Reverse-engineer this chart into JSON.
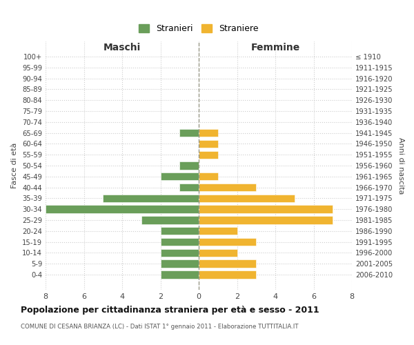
{
  "age_groups": [
    "100+",
    "95-99",
    "90-94",
    "85-89",
    "80-84",
    "75-79",
    "70-74",
    "65-69",
    "60-64",
    "55-59",
    "50-54",
    "45-49",
    "40-44",
    "35-39",
    "30-34",
    "25-29",
    "20-24",
    "15-19",
    "10-14",
    "5-9",
    "0-4"
  ],
  "birth_years": [
    "≤ 1910",
    "1911-1915",
    "1916-1920",
    "1921-1925",
    "1926-1930",
    "1931-1935",
    "1936-1940",
    "1941-1945",
    "1946-1950",
    "1951-1955",
    "1956-1960",
    "1961-1965",
    "1966-1970",
    "1971-1975",
    "1976-1980",
    "1981-1985",
    "1986-1990",
    "1991-1995",
    "1996-2000",
    "2001-2005",
    "2006-2010"
  ],
  "maschi": [
    0,
    0,
    0,
    0,
    0,
    0,
    0,
    1,
    0,
    0,
    1,
    2,
    1,
    5,
    8,
    3,
    2,
    2,
    2,
    2,
    2
  ],
  "femmine": [
    0,
    0,
    0,
    0,
    0,
    0,
    0,
    1,
    1,
    1,
    0,
    1,
    3,
    5,
    7,
    7,
    2,
    3,
    2,
    3,
    3
  ],
  "color_maschi": "#6a9e5a",
  "color_femmine": "#f0b430",
  "background_color": "#ffffff",
  "grid_color": "#cccccc",
  "title": "Popolazione per cittadinanza straniera per età e sesso - 2011",
  "subtitle": "COMUNE DI CESANA BRIANZA (LC) - Dati ISTAT 1° gennaio 2011 - Elaborazione TUTTITALIA.IT",
  "header_left": "Maschi",
  "header_right": "Femmine",
  "ylabel_left": "Fasce di età",
  "ylabel_right": "Anni di nascita",
  "xlim": 8,
  "legend_maschi": "Stranieri",
  "legend_femmine": "Straniere"
}
